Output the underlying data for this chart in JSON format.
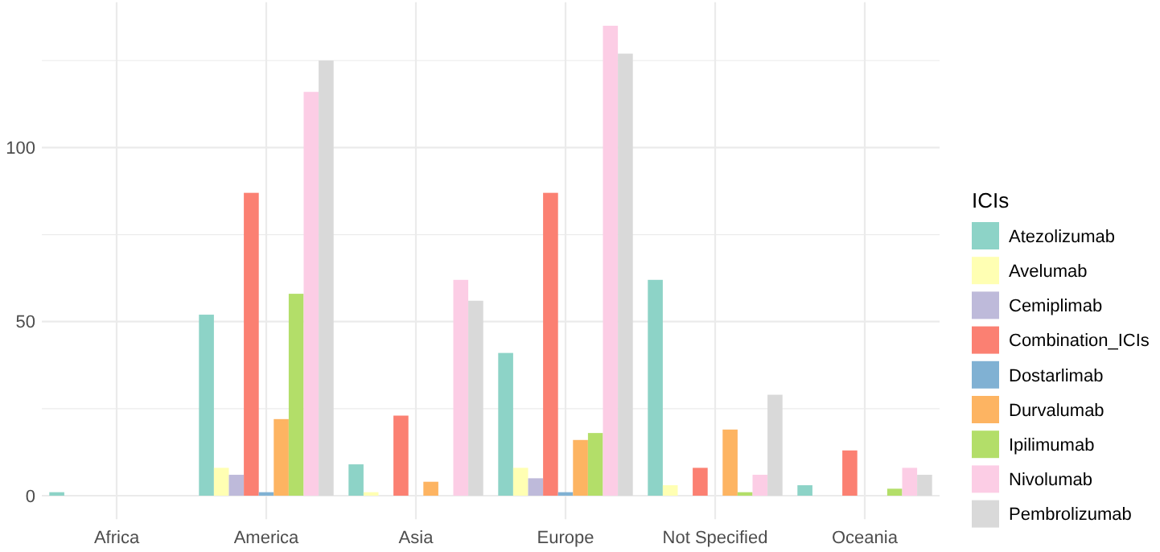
{
  "chart_data": {
    "type": "bar",
    "legend_title": "ICIs",
    "legend": "right",
    "grid": true,
    "categories": [
      "Africa",
      "America",
      "Asia",
      "Europe",
      "Not Specified",
      "Oceania"
    ],
    "ylim": [
      -6.75,
      141.75
    ],
    "yticks": [
      0,
      {
        "value": 25,
        "label": null
      },
      50,
      {
        "value": 75,
        "label": null
      },
      100,
      {
        "value": 125,
        "label": null
      }
    ],
    "series": [
      {
        "name": "Atezolizumab",
        "color": "#8dd3c7",
        "values": [
          1,
          52,
          9,
          41,
          62,
          3
        ]
      },
      {
        "name": "Avelumab",
        "color": "#ffffb3",
        "values": [
          null,
          8,
          1,
          8,
          3,
          null
        ]
      },
      {
        "name": "Cemiplimab",
        "color": "#bebada",
        "values": [
          null,
          6,
          null,
          5,
          null,
          null
        ]
      },
      {
        "name": "Combination_ICIs",
        "color": "#fb8072",
        "values": [
          null,
          87,
          23,
          87,
          8,
          13
        ]
      },
      {
        "name": "Dostarlimab",
        "color": "#80b1d3",
        "values": [
          null,
          1,
          null,
          1,
          null,
          null
        ]
      },
      {
        "name": "Durvalumab",
        "color": "#fdb462",
        "values": [
          null,
          22,
          4,
          16,
          19,
          null
        ]
      },
      {
        "name": "Ipilimumab",
        "color": "#b3de69",
        "values": [
          null,
          58,
          null,
          18,
          1,
          2
        ]
      },
      {
        "name": "Nivolumab",
        "color": "#fccde5",
        "values": [
          null,
          116,
          62,
          135,
          6,
          8
        ]
      },
      {
        "name": "Pembrolizumab",
        "color": "#d9d9d9",
        "values": [
          null,
          125,
          56,
          127,
          29,
          6
        ]
      }
    ]
  }
}
